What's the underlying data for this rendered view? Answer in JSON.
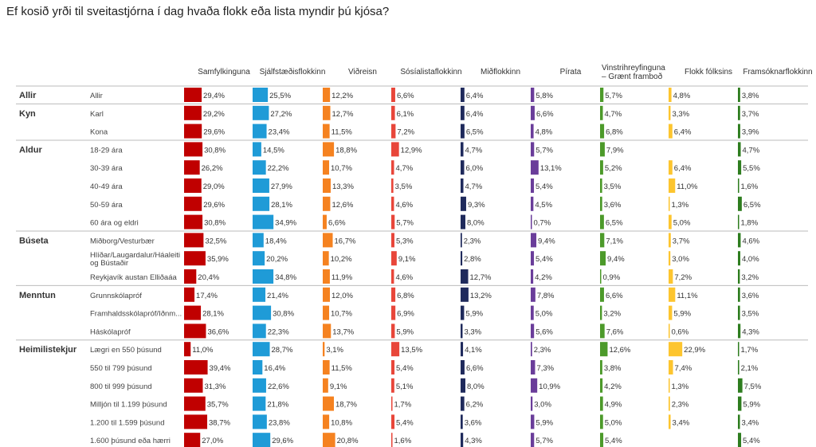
{
  "title": "Ef kosið yrði til sveitastjórna í dag hvaða flokk eða lista myndir þú kjósa?",
  "chart_data": {
    "type": "bar",
    "title": "Ef kosið yrði til sveitastjórna í dag hvaða flokk eða lista myndir þú kjósa?",
    "layout": "small-multiples horizontal bar table",
    "series": [
      {
        "name": "Samfylkinguna",
        "color": "#c00000"
      },
      {
        "name": "Sjálfstæðisflokkinn",
        "color": "#1f9bd7"
      },
      {
        "name": "Viðreisn",
        "color": "#f58220"
      },
      {
        "name": "Sósíalistaflokkinn",
        "color": "#e8463a"
      },
      {
        "name": "Miðflokkinn",
        "color": "#1f2a5c"
      },
      {
        "name": "Pírata",
        "color": "#6a3d9a"
      },
      {
        "name": "Vinstrihreyfinguna – Grænt framboð",
        "label_lines": [
          "Vinstrihreyfinguna",
          "– Grænt framboð"
        ],
        "color": "#4c9a2a"
      },
      {
        "name": "Flokk fólksins",
        "color": "#fdc52f"
      },
      {
        "name": "Framsóknarflokkinn",
        "color": "#2e7d1f"
      }
    ],
    "groups": [
      {
        "name": "Allir",
        "rows": [
          {
            "label": "Allir",
            "values": [
              29.4,
              25.5,
              12.2,
              6.6,
              6.4,
              5.8,
              5.7,
              4.8,
              3.8
            ]
          }
        ]
      },
      {
        "name": "Kyn",
        "rows": [
          {
            "label": "Karl",
            "values": [
              29.2,
              27.2,
              12.7,
              6.1,
              6.4,
              6.6,
              4.7,
              3.3,
              3.7
            ]
          },
          {
            "label": "Kona",
            "values": [
              29.6,
              23.4,
              11.5,
              7.2,
              6.5,
              4.8,
              6.8,
              6.4,
              3.9
            ]
          }
        ]
      },
      {
        "name": "Aldur",
        "rows": [
          {
            "label": "18-29 ára",
            "values": [
              30.8,
              14.5,
              18.8,
              12.9,
              4.7,
              5.7,
              7.9,
              null,
              4.7
            ]
          },
          {
            "label": "30-39 ára",
            "values": [
              26.2,
              22.2,
              10.7,
              4.7,
              6.0,
              13.1,
              5.2,
              6.4,
              5.5
            ]
          },
          {
            "label": "40-49 ára",
            "values": [
              29.0,
              27.9,
              13.3,
              3.5,
              4.7,
              5.4,
              3.5,
              11.0,
              1.6
            ]
          },
          {
            "label": "50-59 ára",
            "values": [
              29.6,
              28.1,
              12.6,
              4.6,
              9.3,
              4.5,
              3.6,
              1.3,
              6.5
            ]
          },
          {
            "label": "60 ára og eldri",
            "values": [
              30.8,
              34.9,
              6.6,
              5.7,
              8.0,
              0.7,
              6.5,
              5.0,
              1.8
            ]
          }
        ]
      },
      {
        "name": "Búseta",
        "rows": [
          {
            "label": "Miðborg/Vesturbær",
            "values": [
              32.5,
              18.4,
              16.7,
              5.3,
              2.3,
              9.4,
              7.1,
              3.7,
              4.6
            ]
          },
          {
            "label": "Hlíðar/Laugardalur/Háaleiti og Bústaðir",
            "label_lines": [
              "Hlíðar/Laugardalur/Háaleiti",
              "og Bústaðir"
            ],
            "values": [
              35.9,
              20.2,
              10.2,
              9.1,
              2.8,
              5.4,
              9.4,
              3.0,
              4.0
            ]
          },
          {
            "label": "Reykjavík austan Elliðaáa",
            "values": [
              20.4,
              34.8,
              11.9,
              4.6,
              12.7,
              4.2,
              0.9,
              7.2,
              3.2
            ]
          }
        ]
      },
      {
        "name": "Menntun",
        "rows": [
          {
            "label": "Grunnskólapróf",
            "values": [
              17.4,
              21.4,
              12.0,
              6.8,
              13.2,
              7.8,
              6.6,
              11.1,
              3.6
            ]
          },
          {
            "label": "Framhaldsskólapróf/Iðnm...",
            "values": [
              28.1,
              30.8,
              10.7,
              6.9,
              5.9,
              5.0,
              3.2,
              5.9,
              3.5
            ]
          },
          {
            "label": "Háskólapróf",
            "values": [
              36.6,
              22.3,
              13.7,
              5.9,
              3.3,
              5.6,
              7.6,
              0.6,
              4.3
            ]
          }
        ]
      },
      {
        "name": "Heimilistekjur",
        "rows": [
          {
            "label": "Lægri en 550 þúsund",
            "values": [
              11.0,
              28.7,
              3.1,
              13.5,
              4.1,
              2.3,
              12.6,
              22.9,
              1.7
            ]
          },
          {
            "label": "550 til 799 þúsund",
            "values": [
              39.4,
              16.4,
              11.5,
              5.4,
              6.6,
              7.3,
              3.8,
              7.4,
              2.1
            ]
          },
          {
            "label": "800 til 999 þúsund",
            "values": [
              31.3,
              22.6,
              9.1,
              5.1,
              8.0,
              10.9,
              4.2,
              1.3,
              7.5
            ]
          },
          {
            "label": "Milljón til 1.199 þúsund",
            "values": [
              35.7,
              21.8,
              18.7,
              1.7,
              6.2,
              3.0,
              4.9,
              2.3,
              5.9
            ]
          },
          {
            "label": "1.200 til 1.599 þúsund",
            "values": [
              38.7,
              23.8,
              10.8,
              5.4,
              3.6,
              5.9,
              5.0,
              3.4,
              3.4
            ]
          },
          {
            "label": "1.600 þúsund eða hærri",
            "values": [
              27.0,
              29.6,
              20.8,
              1.6,
              4.3,
              5.7,
              5.4,
              null,
              5.4
            ]
          }
        ]
      }
    ]
  }
}
